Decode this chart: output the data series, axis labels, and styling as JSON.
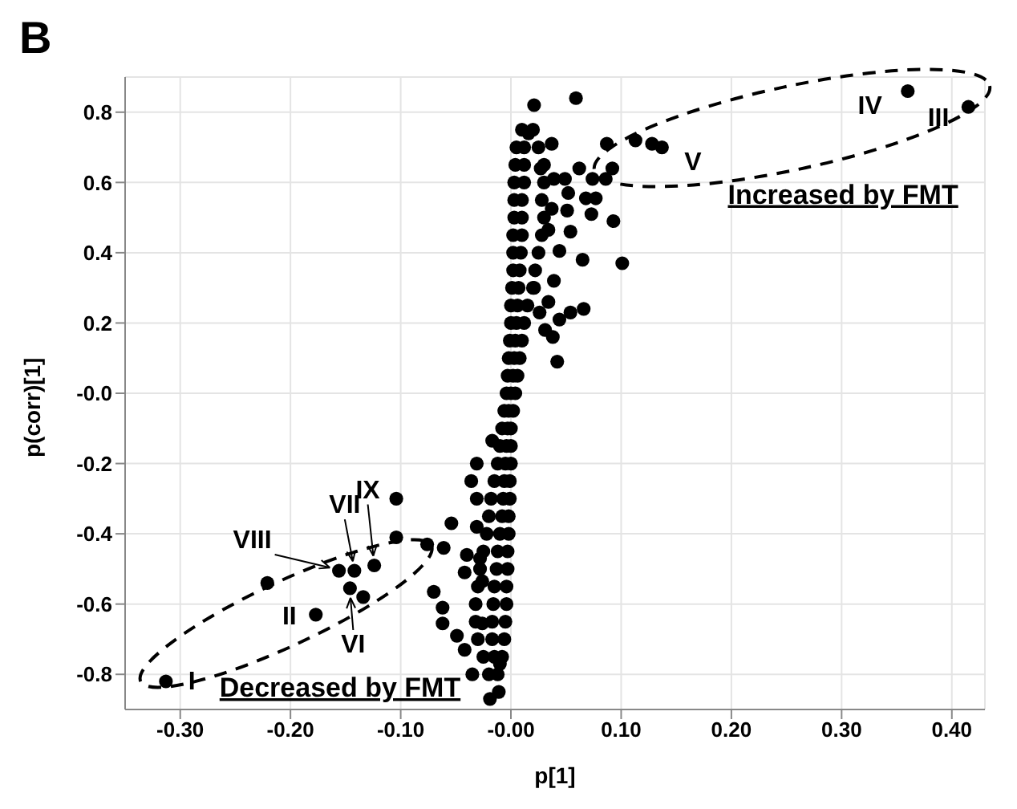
{
  "chart_data": {
    "type": "scatter",
    "title": "B",
    "xlabel": "p[1]",
    "ylabel": "p(corr)[1]",
    "xlim": [
      -0.35,
      0.43
    ],
    "ylim": [
      -0.9,
      0.9
    ],
    "xticks": [
      {
        "value": -0.3,
        "label": "-0.30"
      },
      {
        "value": -0.2,
        "label": "-0.20"
      },
      {
        "value": -0.1,
        "label": "-0.10"
      },
      {
        "value": 0,
        "label": "-0.00"
      },
      {
        "value": 0.1,
        "label": "0.10"
      },
      {
        "value": 0.2,
        "label": "0.20"
      },
      {
        "value": 0.3,
        "label": "0.30"
      },
      {
        "value": 0.4,
        "label": "0.40"
      }
    ],
    "yticks": [
      -0.8,
      -0.6,
      -0.4,
      -0.2,
      {
        "value": 0,
        "label": "-0.0"
      },
      0.2,
      0.4,
      0.6,
      0.8
    ],
    "grid": true,
    "marker": "circle",
    "series": [
      {
        "color": "#000000",
        "x": [
          -0.313,
          -0.177,
          -0.146,
          -0.142,
          -0.156,
          -0.124,
          0.415,
          0.36,
          0.137,
          0.087,
          0.113,
          0.128,
          0.021,
          0.059,
          0.037,
          0.016,
          0.027,
          0.062,
          0.039,
          0.049,
          0.074,
          0.086,
          0.092,
          0.052,
          0.068,
          0.077,
          0.073,
          0.037,
          0.051,
          0.093,
          0.054,
          0.034,
          0.044,
          0.065,
          0.101,
          0.039,
          0.034,
          0.054,
          0.066,
          0.044,
          0.031,
          0.038,
          0.042,
          0.026,
          0.021,
          -0.221,
          -0.134,
          -0.104,
          -0.104,
          -0.076,
          -0.061,
          -0.054,
          -0.07,
          -0.062,
          -0.062,
          -0.049,
          -0.042,
          -0.035,
          -0.036,
          -0.031,
          -0.031,
          -0.04,
          -0.028,
          -0.042,
          -0.026,
          -0.019,
          -0.011,
          -0.01,
          -0.026,
          -0.031,
          -0.017,
          0.01,
          0.02,
          0.005,
          0.012,
          0.025,
          0.004,
          0.012,
          0.03,
          0.003,
          0.012,
          0.03,
          0.003,
          0.01,
          0.028,
          0.003,
          0.01,
          0.03,
          0.002,
          0.01,
          0.028,
          0.002,
          0.009,
          0.025,
          0.002,
          0.008,
          0.022,
          0.001,
          0.007,
          0.02,
          0.0,
          0.006,
          0.015,
          0.0,
          0.005,
          0.012,
          -0.001,
          0.004,
          0.01,
          -0.002,
          0.003,
          0.008,
          -0.003,
          0.002,
          0.006,
          -0.004,
          0.0,
          0.004,
          -0.006,
          -0.002,
          0.002,
          -0.008,
          -0.003,
          0.0,
          -0.01,
          -0.004,
          0.0,
          -0.012,
          -0.005,
          0.0,
          -0.015,
          -0.006,
          -0.001,
          -0.018,
          -0.007,
          -0.001,
          -0.02,
          -0.008,
          -0.002,
          -0.022,
          -0.01,
          -0.002,
          -0.025,
          -0.012,
          -0.003,
          -0.028,
          -0.013,
          -0.003,
          -0.03,
          -0.015,
          -0.004,
          -0.032,
          -0.016,
          -0.004,
          -0.032,
          -0.017,
          -0.005,
          -0.03,
          -0.017,
          -0.006,
          -0.025,
          -0.015,
          -0.008,
          -0.02,
          -0.012
        ],
        "values": [
          -0.82,
          -0.63,
          -0.555,
          -0.505,
          -0.505,
          -0.49,
          0.815,
          0.86,
          0.7,
          0.71,
          0.72,
          0.71,
          0.82,
          0.84,
          0.71,
          0.74,
          0.64,
          0.64,
          0.61,
          0.61,
          0.61,
          0.61,
          0.64,
          0.57,
          0.555,
          0.555,
          0.51,
          0.525,
          0.52,
          0.49,
          0.46,
          0.465,
          0.405,
          0.38,
          0.37,
          0.32,
          0.26,
          0.23,
          0.24,
          0.21,
          0.18,
          0.16,
          0.09,
          0.23,
          0.3,
          -0.54,
          -0.58,
          -0.41,
          -0.3,
          -0.43,
          -0.44,
          -0.37,
          -0.565,
          -0.61,
          -0.655,
          -0.69,
          -0.73,
          -0.8,
          -0.25,
          -0.3,
          -0.38,
          -0.46,
          -0.47,
          -0.51,
          -0.535,
          -0.87,
          -0.85,
          -0.77,
          -0.655,
          -0.2,
          -0.135,
          0.75,
          0.75,
          0.7,
          0.7,
          0.7,
          0.65,
          0.65,
          0.65,
          0.6,
          0.6,
          0.6,
          0.55,
          0.55,
          0.55,
          0.5,
          0.5,
          0.5,
          0.45,
          0.45,
          0.45,
          0.4,
          0.4,
          0.4,
          0.35,
          0.35,
          0.35,
          0.3,
          0.3,
          0.3,
          0.25,
          0.25,
          0.25,
          0.2,
          0.2,
          0.2,
          0.15,
          0.15,
          0.15,
          0.1,
          0.1,
          0.1,
          0.05,
          0.05,
          0.05,
          0.0,
          0.0,
          0.0,
          -0.05,
          -0.05,
          -0.05,
          -0.1,
          -0.1,
          -0.1,
          -0.15,
          -0.15,
          -0.15,
          -0.2,
          -0.2,
          -0.2,
          -0.25,
          -0.25,
          -0.25,
          -0.3,
          -0.3,
          -0.3,
          -0.35,
          -0.35,
          -0.35,
          -0.4,
          -0.4,
          -0.4,
          -0.45,
          -0.45,
          -0.45,
          -0.5,
          -0.5,
          -0.5,
          -0.55,
          -0.55,
          -0.55,
          -0.6,
          -0.6,
          -0.6,
          -0.65,
          -0.65,
          -0.65,
          -0.7,
          -0.7,
          -0.7,
          -0.75,
          -0.75,
          -0.75,
          -0.8,
          -0.8
        ]
      }
    ],
    "annotations": [
      {
        "text": "I",
        "x": -0.313,
        "y": -0.82
      },
      {
        "text": "II",
        "x": -0.177,
        "y": -0.63
      },
      {
        "text": "VI",
        "x": -0.146,
        "y": -0.555
      },
      {
        "text": "VII",
        "x": -0.142,
        "y": -0.505
      },
      {
        "text": "VIII",
        "x": -0.156,
        "y": -0.505
      },
      {
        "text": "IX",
        "x": -0.124,
        "y": -0.49
      },
      {
        "text": "III",
        "x": 0.415,
        "y": 0.815
      },
      {
        "text": "IV",
        "x": 0.36,
        "y": 0.86
      },
      {
        "text": "V",
        "x": 0.137,
        "y": 0.7
      },
      "Increased by FMT",
      "Decreased by FMT"
    ]
  }
}
